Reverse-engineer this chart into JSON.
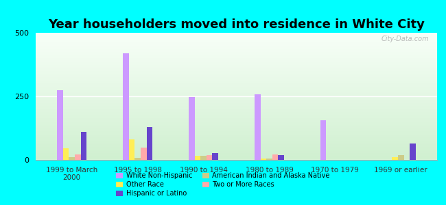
{
  "title": "Year householders moved into residence in White City",
  "categories": [
    "1999 to March\n2000",
    "1995 to 1998",
    "1990 to 1994",
    "1980 to 1989",
    "1970 to 1979",
    "1969 or earlier"
  ],
  "series_order": [
    "White Non-Hispanic",
    "Other Race",
    "American Indian and Alaska Native",
    "Two or More Races",
    "Hispanic or Latino"
  ],
  "series": {
    "White Non-Hispanic": [
      275,
      420,
      248,
      258,
      155,
      0
    ],
    "Other Race": [
      45,
      80,
      15,
      5,
      0,
      12
    ],
    "American Indian and Alaska Native": [
      10,
      8,
      15,
      5,
      0,
      18
    ],
    "Two or More Races": [
      22,
      48,
      18,
      22,
      0,
      0
    ],
    "Hispanic or Latino": [
      110,
      130,
      28,
      20,
      0,
      65
    ]
  },
  "colors": {
    "White Non-Hispanic": "#cc99ff",
    "Other Race": "#ffee55",
    "American Indian and Alaska Native": "#cccc88",
    "Two or More Races": "#ffaaaa",
    "Hispanic or Latino": "#6644cc"
  },
  "ylim": [
    0,
    500
  ],
  "yticks": [
    0,
    250,
    500
  ],
  "background_outer": "#00ffff",
  "background_inner_top": "#f8fff8",
  "background_inner_bottom": "#d0f0d0",
  "bar_width": 0.09,
  "title_fontsize": 13,
  "watermark": "City-Data.com",
  "legend_order": [
    "White Non-Hispanic",
    "Other Race",
    "Hispanic or Latino",
    "American Indian and Alaska Native",
    "Two or More Races"
  ]
}
